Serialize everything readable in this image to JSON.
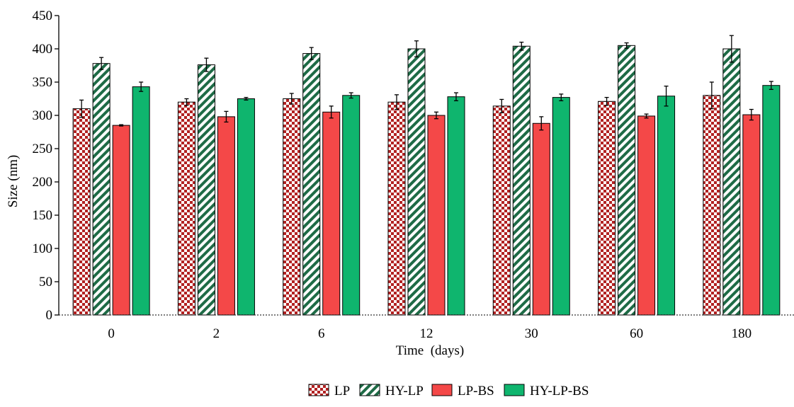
{
  "chart_data": {
    "type": "bar",
    "title": "",
    "xlabel": "Time  (days)",
    "ylabel": "Size (nm)",
    "ylim": [
      0,
      450
    ],
    "yticks": [
      0,
      50,
      100,
      150,
      200,
      250,
      300,
      350,
      400,
      450
    ],
    "categories": [
      "0",
      "2",
      "6",
      "12",
      "30",
      "60",
      "180"
    ],
    "series": [
      {
        "name": "LP",
        "pattern": "checkerboard",
        "color": "#b22222",
        "values": [
          310,
          320,
          325,
          320,
          314,
          321,
          330
        ],
        "errors": [
          13,
          5,
          8,
          11,
          10,
          6,
          20
        ]
      },
      {
        "name": "HY-LP",
        "pattern": "diagonal-stripes",
        "color": "#1e6b46",
        "values": [
          378,
          376,
          393,
          400,
          404,
          405,
          400
        ],
        "errors": [
          9,
          10,
          9,
          12,
          6,
          4,
          20
        ]
      },
      {
        "name": "LP-BS",
        "pattern": "solid",
        "color": "#f44848",
        "values": [
          285,
          298,
          305,
          300,
          288,
          299,
          301
        ],
        "errors": [
          1,
          8,
          9,
          5,
          10,
          3,
          8
        ]
      },
      {
        "name": "HY-LP-BS",
        "pattern": "solid",
        "color": "#0fb56e",
        "values": [
          343,
          325,
          330,
          328,
          327,
          329,
          345
        ],
        "errors": [
          7,
          2,
          4,
          6,
          5,
          15,
          6
        ]
      }
    ],
    "legend_position": "bottom-center",
    "grid": false
  }
}
